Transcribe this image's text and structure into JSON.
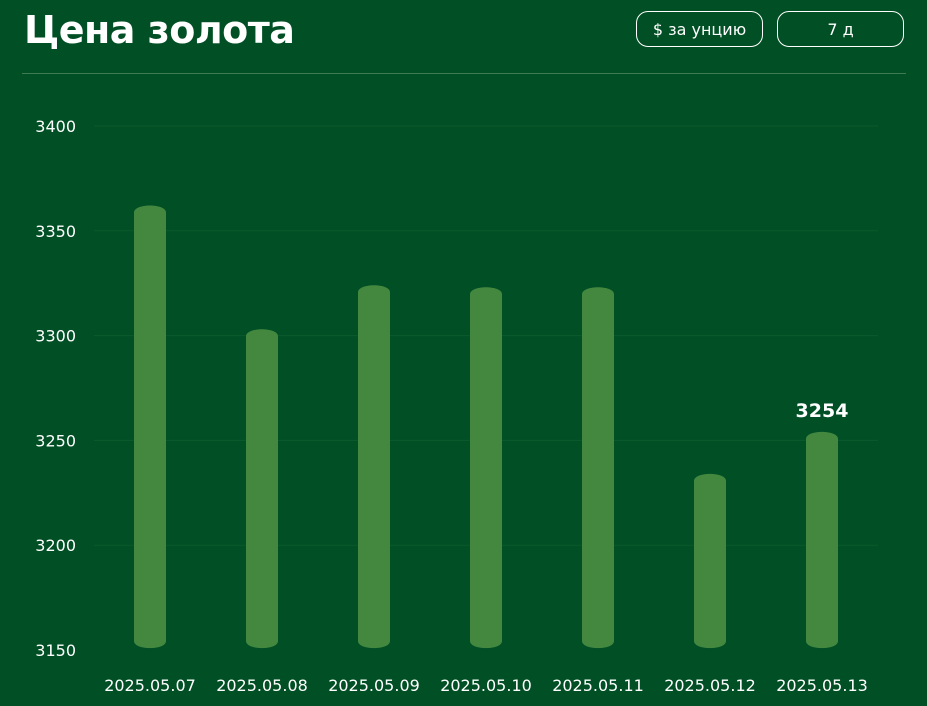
{
  "header": {
    "title": "Цена золота",
    "unit_button": "$ за унцию",
    "range_button": "7 д"
  },
  "colors": {
    "background": "#014f24",
    "bar": "#448840",
    "grid": "#0b5a2c",
    "divider": "#3e7a52",
    "text": "#ffffff"
  },
  "chart_data": {
    "type": "bar",
    "categories": [
      "2025.05.07",
      "2025.05.08",
      "2025.05.09",
      "2025.05.10",
      "2025.05.11",
      "2025.05.12",
      "2025.05.13"
    ],
    "values": [
      3362,
      3303,
      3324,
      3323,
      3323,
      3234,
      3254
    ],
    "ylim": [
      3150,
      3400
    ],
    "yticks": [
      3150,
      3200,
      3250,
      3300,
      3350,
      3400
    ],
    "ytick_labels": [
      "3150",
      "3200",
      "3250",
      "3300",
      "3350",
      "3400"
    ],
    "data_labels": [
      {
        "category": "2025.05.13",
        "text": "3254"
      }
    ],
    "grid": true,
    "title": "Цена золота",
    "xlabel": "",
    "ylabel": ""
  }
}
